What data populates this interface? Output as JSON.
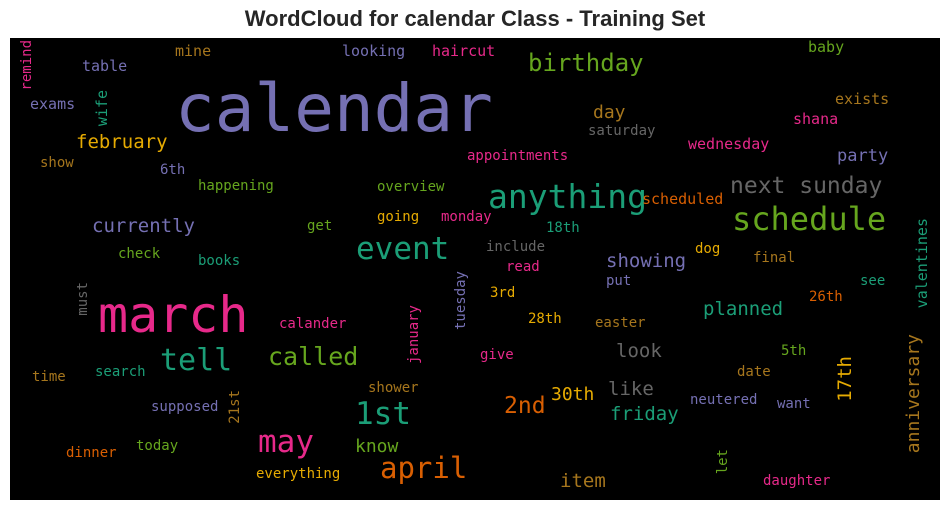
{
  "chart_data": {
    "type": "wordcloud",
    "title": "WordCloud for calendar Class - Training Set",
    "background": "#000000",
    "words": [
      {
        "text": "calendar",
        "color": "#7570b3"
      },
      {
        "text": "march",
        "color": "#e7298a"
      },
      {
        "text": "anything",
        "color": "#1b9e77"
      },
      {
        "text": "schedule",
        "color": "#66a61e"
      },
      {
        "text": "event",
        "color": "#1b9e77"
      },
      {
        "text": "1st",
        "color": "#1b9e77"
      },
      {
        "text": "may",
        "color": "#e7298a"
      },
      {
        "text": "april",
        "color": "#d95f02"
      },
      {
        "text": "tell",
        "color": "#1b9e77"
      },
      {
        "text": "called",
        "color": "#66a61e"
      },
      {
        "text": "birthday",
        "color": "#66a61e"
      },
      {
        "text": "next sunday",
        "color": "#666666"
      },
      {
        "text": "2nd",
        "color": "#d95f02"
      },
      {
        "text": "february",
        "color": "#e6ab02"
      },
      {
        "text": "currently",
        "color": "#7570b3"
      },
      {
        "text": "planned",
        "color": "#1b9e77"
      },
      {
        "text": "showing",
        "color": "#7570b3"
      },
      {
        "text": "look",
        "color": "#666666"
      },
      {
        "text": "party",
        "color": "#7570b3"
      },
      {
        "text": "like",
        "color": "#666666"
      },
      {
        "text": "friday",
        "color": "#1b9e77"
      },
      {
        "text": "30th",
        "color": "#e6ab02"
      },
      {
        "text": "know",
        "color": "#66a61e"
      },
      {
        "text": "item",
        "color": "#a6761d"
      },
      {
        "text": "day",
        "color": "#a6761d"
      },
      {
        "text": "anniversary",
        "color": "#a6761d"
      },
      {
        "text": "17th",
        "color": "#e6ab02"
      },
      {
        "text": "valentines",
        "color": "#1b9e77"
      },
      {
        "text": "wife",
        "color": "#1b9e77"
      },
      {
        "text": "remind",
        "color": "#e7298a"
      },
      {
        "text": "table",
        "color": "#7570b3"
      },
      {
        "text": "mine",
        "color": "#a6761d"
      },
      {
        "text": "looking",
        "color": "#7570b3"
      },
      {
        "text": "haircut",
        "color": "#e7298a"
      },
      {
        "text": "baby",
        "color": "#66a61e"
      },
      {
        "text": "exams",
        "color": "#7570b3"
      },
      {
        "text": "exists",
        "color": "#a6761d"
      },
      {
        "text": "shana",
        "color": "#e7298a"
      },
      {
        "text": "saturday",
        "color": "#666666"
      },
      {
        "text": "wednesday",
        "color": "#e7298a"
      },
      {
        "text": "show",
        "color": "#a6761d"
      },
      {
        "text": "6th",
        "color": "#7570b3"
      },
      {
        "text": "appointments",
        "color": "#e7298a"
      },
      {
        "text": "happening",
        "color": "#66a61e"
      },
      {
        "text": "overview",
        "color": "#66a61e"
      },
      {
        "text": "scheduled",
        "color": "#d95f02"
      },
      {
        "text": "going",
        "color": "#e6ab02"
      },
      {
        "text": "monday",
        "color": "#e7298a"
      },
      {
        "text": "get",
        "color": "#66a61e"
      },
      {
        "text": "18th",
        "color": "#1b9e77"
      },
      {
        "text": "include",
        "color": "#666666"
      },
      {
        "text": "dog",
        "color": "#e6ab02"
      },
      {
        "text": "final",
        "color": "#a6761d"
      },
      {
        "text": "check",
        "color": "#66a61e"
      },
      {
        "text": "books",
        "color": "#1b9e77"
      },
      {
        "text": "read",
        "color": "#e7298a"
      },
      {
        "text": "tuesday",
        "color": "#7570b3"
      },
      {
        "text": "put",
        "color": "#7570b3"
      },
      {
        "text": "see",
        "color": "#1b9e77"
      },
      {
        "text": "3rd",
        "color": "#e6ab02"
      },
      {
        "text": "26th",
        "color": "#d95f02"
      },
      {
        "text": "must",
        "color": "#666666"
      },
      {
        "text": "28th",
        "color": "#e6ab02"
      },
      {
        "text": "easter",
        "color": "#a6761d"
      },
      {
        "text": "calander",
        "color": "#e7298a"
      },
      {
        "text": "january",
        "color": "#e7298a"
      },
      {
        "text": "give",
        "color": "#e7298a"
      },
      {
        "text": "5th",
        "color": "#66a61e"
      },
      {
        "text": "time",
        "color": "#a6761d"
      },
      {
        "text": "search",
        "color": "#1b9e77"
      },
      {
        "text": "shower",
        "color": "#a6761d"
      },
      {
        "text": "date",
        "color": "#a6761d"
      },
      {
        "text": "supposed",
        "color": "#7570b3"
      },
      {
        "text": "21st",
        "color": "#a6761d"
      },
      {
        "text": "neutered",
        "color": "#7570b3"
      },
      {
        "text": "want",
        "color": "#7570b3"
      },
      {
        "text": "dinner",
        "color": "#d95f02"
      },
      {
        "text": "today",
        "color": "#66a61e"
      },
      {
        "text": "let",
        "color": "#66a61e"
      },
      {
        "text": "everything",
        "color": "#e6ab02"
      },
      {
        "text": "daughter",
        "color": "#e7298a"
      }
    ]
  }
}
